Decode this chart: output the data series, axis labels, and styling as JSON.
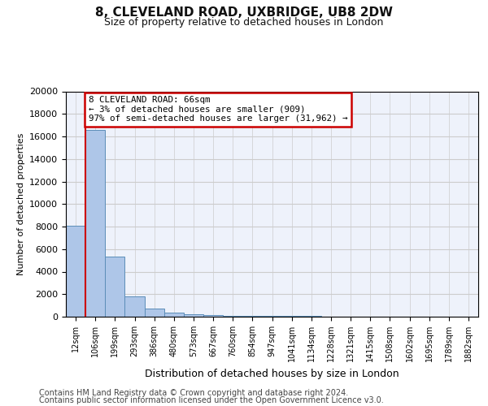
{
  "title1": "8, CLEVELAND ROAD, UXBRIDGE, UB8 2DW",
  "title2": "Size of property relative to detached houses in London",
  "xlabel": "Distribution of detached houses by size in London",
  "ylabel": "Number of detached properties",
  "bar_labels": [
    "12sqm",
    "106sqm",
    "199sqm",
    "293sqm",
    "386sqm",
    "480sqm",
    "573sqm",
    "667sqm",
    "760sqm",
    "854sqm",
    "947sqm",
    "1041sqm",
    "1134sqm",
    "1228sqm",
    "1321sqm",
    "1415sqm",
    "1508sqm",
    "1602sqm",
    "1695sqm",
    "1789sqm",
    "1882sqm"
  ],
  "bar_values": [
    8100,
    16600,
    5300,
    1800,
    700,
    350,
    250,
    150,
    100,
    80,
    60,
    50,
    40,
    35,
    30,
    25,
    20,
    15,
    12,
    10,
    8
  ],
  "bar_color": "#aec6e8",
  "bar_edge_color": "#5b8db8",
  "annotation_title": "8 CLEVELAND ROAD: 66sqm",
  "annotation_line1": "← 3% of detached houses are smaller (909)",
  "annotation_line2": "97% of semi-detached houses are larger (31,962) →",
  "annotation_box_color": "#ffffff",
  "annotation_box_edge_color": "#cc0000",
  "vline_color": "#cc0000",
  "ylim": [
    0,
    20000
  ],
  "yticks": [
    0,
    2000,
    4000,
    6000,
    8000,
    10000,
    12000,
    14000,
    16000,
    18000,
    20000
  ],
  "grid_color": "#cccccc",
  "footer1": "Contains HM Land Registry data © Crown copyright and database right 2024.",
  "footer2": "Contains public sector information licensed under the Open Government Licence v3.0.",
  "bg_color": "#eef2fb"
}
